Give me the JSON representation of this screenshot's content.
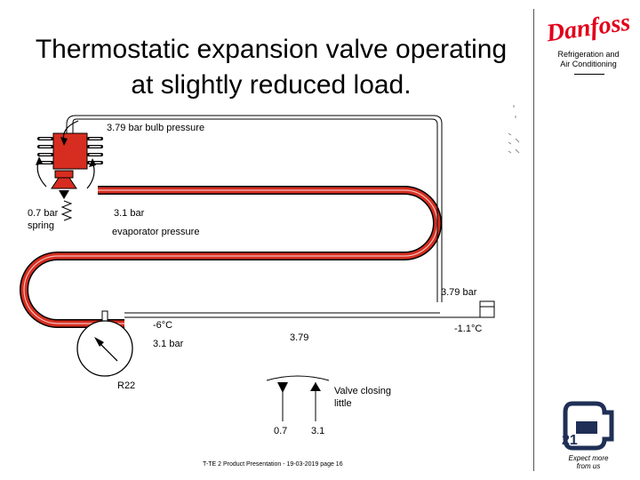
{
  "title": {
    "line1": "Thermostatic expansion valve operating",
    "line2": "at slightly reduced load."
  },
  "brand": {
    "logo": "Danfoss",
    "subtitle_line1": "Refrigeration and",
    "subtitle_line2": "Air Conditioning",
    "slogan_line1": "Expect more",
    "slogan_line2": "from us"
  },
  "labels": {
    "bulb_pressure": "3.79 bar bulb pressure",
    "spring_value": "0.7 bar",
    "spring_word": "spring",
    "evap_value": "3.1 bar",
    "evap_word": "evaporator pressure",
    "outlet_pressure": "3.79 bar",
    "temp_evap": "-6°C",
    "gauge_pressure": "3.1 bar",
    "temp_bulb": "-1.1°C",
    "balance_top": "3.79",
    "refrigerant": "R22",
    "valve_state_line1": "Valve closing",
    "valve_state_line2": "little",
    "balance_left": "0.7",
    "balance_right": "3.1"
  },
  "footer": "T-TE 2 Product Presentation - 19-03-2019 page 16",
  "colors": {
    "pipe": "#d62d20",
    "outline": "#000000",
    "logo": "#e2001a",
    "emblem": "#1f2f55"
  }
}
